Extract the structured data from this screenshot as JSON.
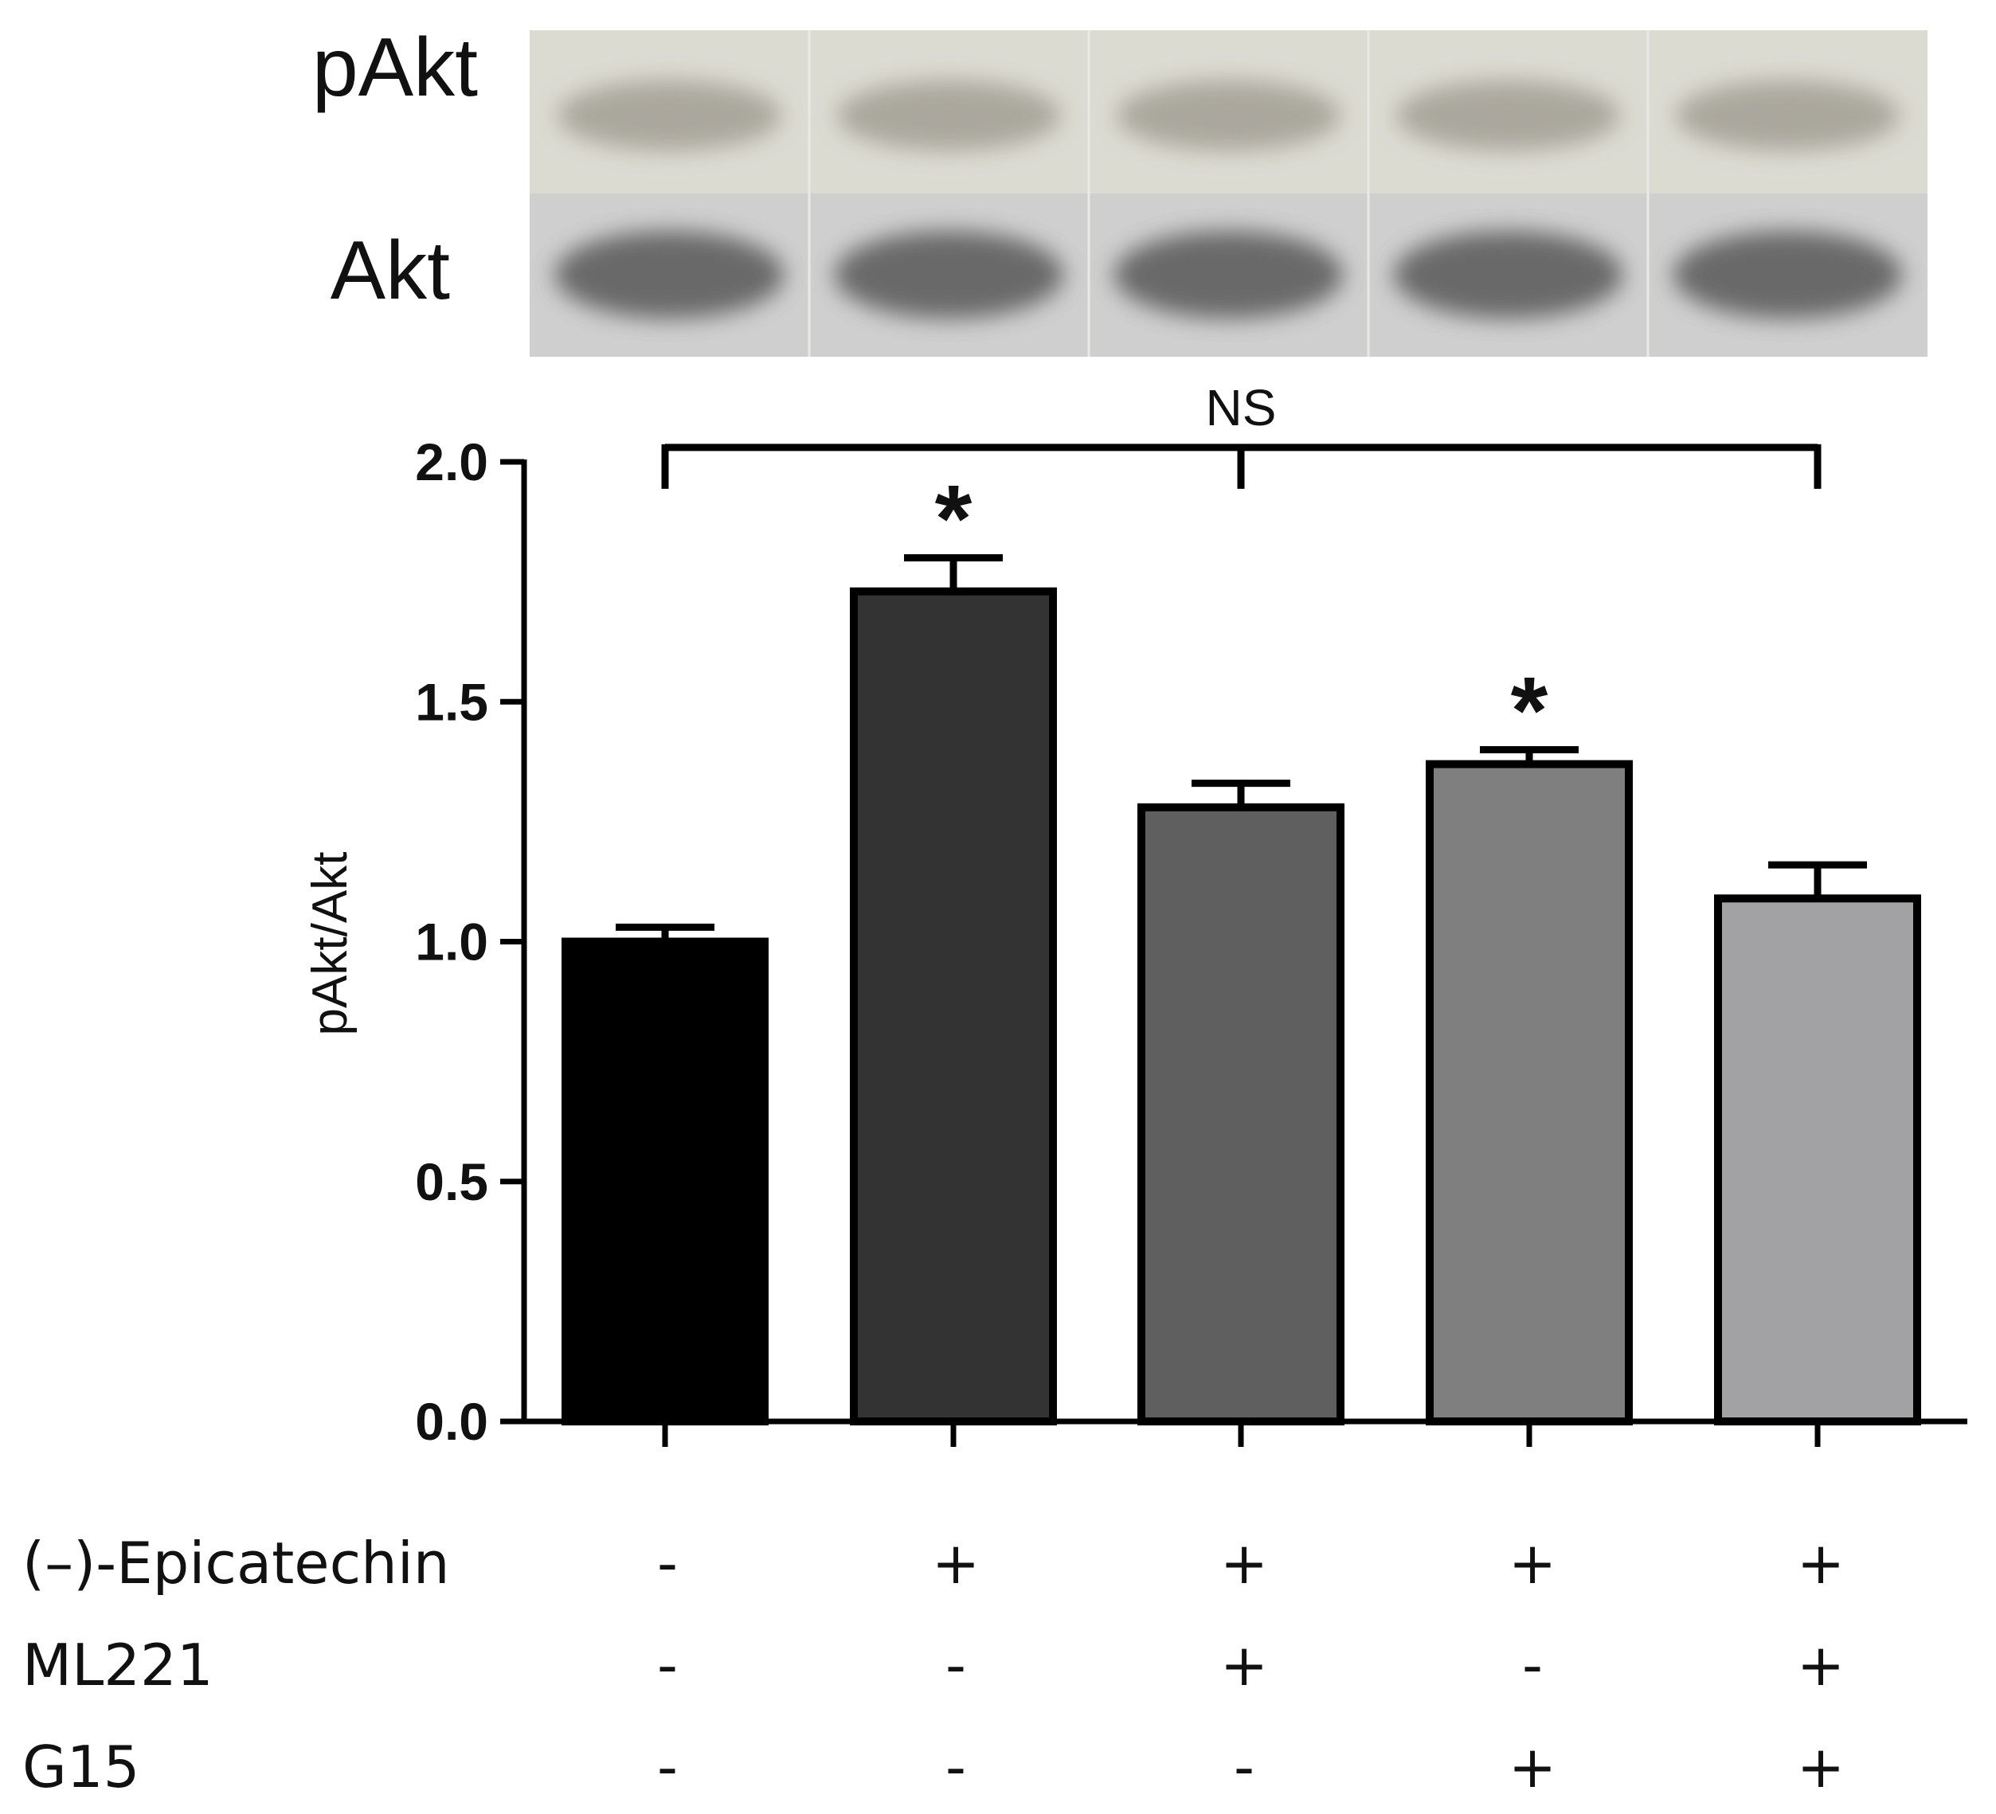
{
  "blot": {
    "row_labels": [
      "pAkt",
      "Akt"
    ],
    "lanes": 5
  },
  "chart_data": {
    "type": "bar",
    "ylabel": "pAkt/Akt",
    "ylim": [
      0,
      2.0
    ],
    "yticks": [
      "0.0",
      "0.5",
      "1.0",
      "1.5",
      "2.0"
    ],
    "values": [
      1.0,
      1.73,
      1.28,
      1.37,
      1.09
    ],
    "errors": [
      0.03,
      0.07,
      0.05,
      0.03,
      0.07
    ],
    "bar_colors": [
      "#000000",
      "#333333",
      "#5f5f5f",
      "#7f7f7f",
      "#a2a2a4"
    ],
    "annotations": [
      "",
      "*",
      "",
      "*",
      ""
    ],
    "significance_bracket": {
      "label": "NS",
      "from": 0,
      "mid": 2,
      "to": 4,
      "y": 2.03
    },
    "treatments": [
      {
        "name": "(–)-Epicatechin",
        "signs": [
          "-",
          "+",
          "+",
          "+",
          "+"
        ]
      },
      {
        "name": "ML221",
        "signs": [
          "-",
          "-",
          "+",
          "-",
          "+"
        ]
      },
      {
        "name": "G15",
        "signs": [
          "-",
          "-",
          "-",
          "+",
          "+"
        ]
      }
    ]
  }
}
